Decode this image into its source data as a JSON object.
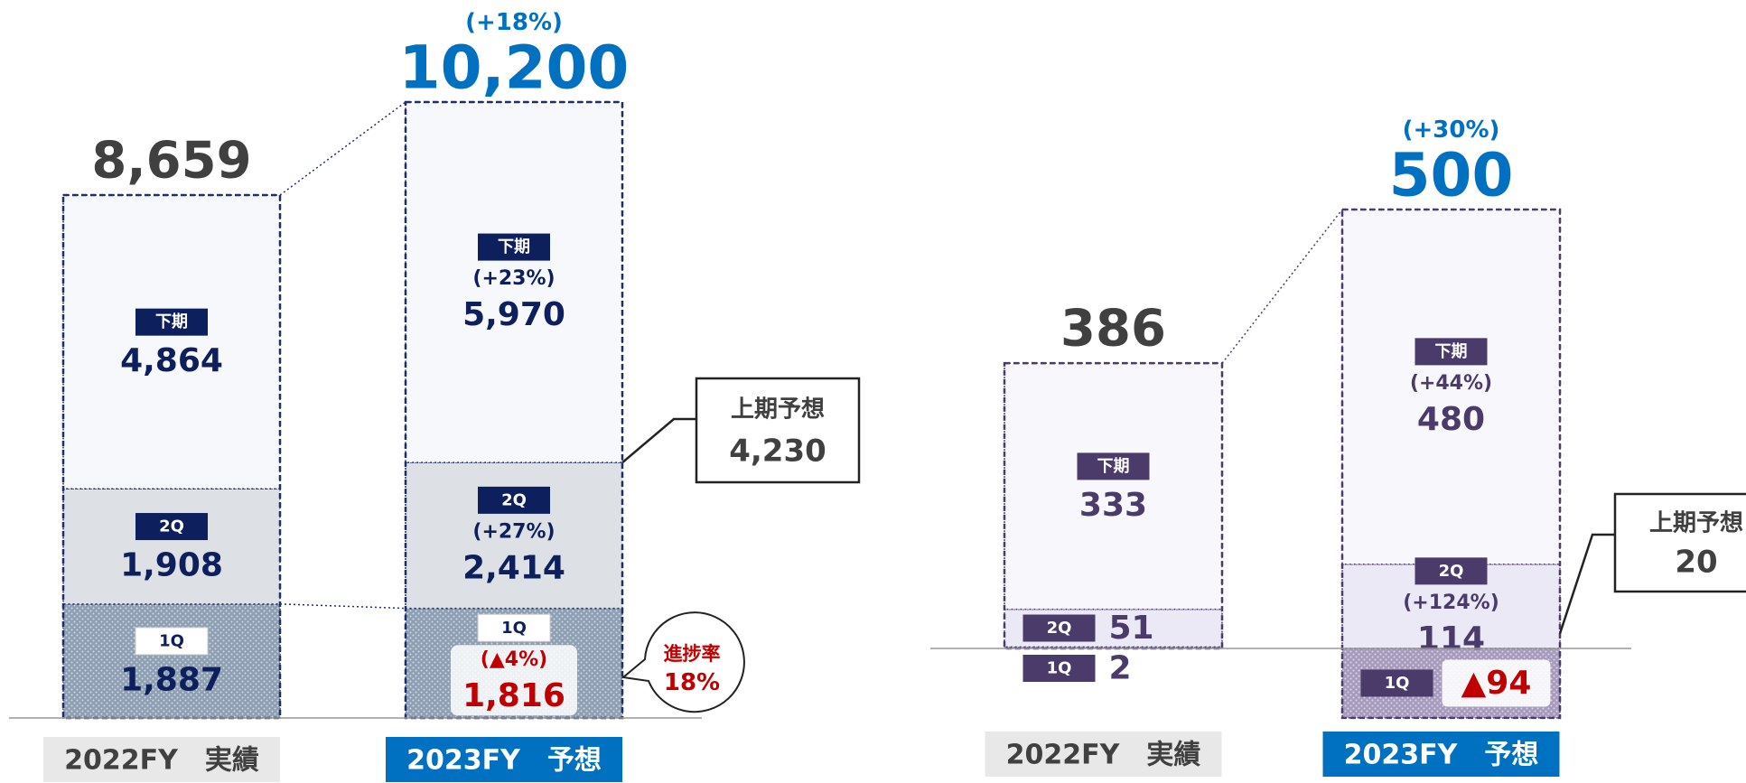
{
  "chart_data": [
    {
      "type": "bar",
      "stacked": true,
      "categories": [
        "2022FY　実績",
        "2023FY　予想"
      ],
      "category_fills": [
        "#e8e8e8",
        "#0070c0"
      ],
      "category_text_colors": [
        "#404040",
        "#ffffff"
      ],
      "text_color": "#0d1f5c",
      "outline_color": "#1f2d6b",
      "highlight_color": "#c00000",
      "series": [
        {
          "name": "1Q",
          "color": "#8e9fb3",
          "pattern": "dots",
          "tag_fill": "#ffffff",
          "tag_text": "#0d1f5c",
          "values": [
            1887,
            1816
          ],
          "value_labels": [
            "1,887",
            "1,816"
          ],
          "change_labels": [
            null,
            "(▲4%)"
          ],
          "highlight": [
            false,
            true
          ]
        },
        {
          "name": "2Q",
          "color": "#dde1e6",
          "tag_fill": "#0d1f5c",
          "tag_text": "#ffffff",
          "values": [
            1908,
            2414
          ],
          "value_labels": [
            "1,908",
            "2,414"
          ],
          "change_labels": [
            null,
            "(+27%)"
          ],
          "highlight": [
            false,
            false
          ]
        },
        {
          "name": "下期",
          "color": "#f6f8fc",
          "tag_fill": "#0d1f5c",
          "tag_text": "#ffffff",
          "values": [
            4864,
            5970
          ],
          "value_labels": [
            "4,864",
            "5,970"
          ],
          "change_labels": [
            null,
            "(+23%)"
          ],
          "highlight": [
            false,
            false
          ]
        }
      ],
      "totals": {
        "values": [
          8659,
          10200
        ],
        "value_labels": [
          "8,659",
          "10,200"
        ],
        "change_labels": [
          null,
          "(+18%)"
        ],
        "colors": [
          "#404040",
          "#0070c0"
        ]
      },
      "callout": {
        "label": "上期予想",
        "value": 4230,
        "value_label": "4,230"
      },
      "note": {
        "label": "進捗率",
        "value_label": "18%"
      }
    },
    {
      "type": "bar",
      "stacked": true,
      "categories": [
        "2022FY　実績",
        "2023FY　予想"
      ],
      "category_fills": [
        "#e8e8e8",
        "#0070c0"
      ],
      "category_text_colors": [
        "#404040",
        "#ffffff"
      ],
      "text_color": "#4b3b6b",
      "outline_color": "#4b3b6b",
      "highlight_color": "#c00000",
      "series": [
        {
          "name": "1Q",
          "color": "#a79bbd",
          "pattern": "dots",
          "tag_fill": "#4b3b6b",
          "tag_text": "#ffffff",
          "values": [
            2,
            -94
          ],
          "value_labels": [
            "2",
            "▲94"
          ],
          "change_labels": [
            null,
            null
          ],
          "highlight": [
            false,
            true
          ]
        },
        {
          "name": "2Q",
          "color": "#ece9f6",
          "tag_fill": "#4b3b6b",
          "tag_text": "#ffffff",
          "values": [
            51,
            114
          ],
          "value_labels": [
            "51",
            "114"
          ],
          "change_labels": [
            null,
            "(+124%)"
          ],
          "highlight": [
            false,
            false
          ]
        },
        {
          "name": "下期",
          "color": "#f8f7fc",
          "tag_fill": "#4b3b6b",
          "tag_text": "#ffffff",
          "values": [
            333,
            480
          ],
          "value_labels": [
            "333",
            "480"
          ],
          "change_labels": [
            null,
            "(+44%)"
          ],
          "highlight": [
            false,
            false
          ]
        }
      ],
      "totals": {
        "values": [
          386,
          500
        ],
        "value_labels": [
          "386",
          "500"
        ],
        "change_labels": [
          null,
          "(+30%)"
        ],
        "colors": [
          "#404040",
          "#0070c0"
        ]
      },
      "callout": {
        "label": "上期予想",
        "value": 20,
        "value_label": "20"
      }
    }
  ]
}
